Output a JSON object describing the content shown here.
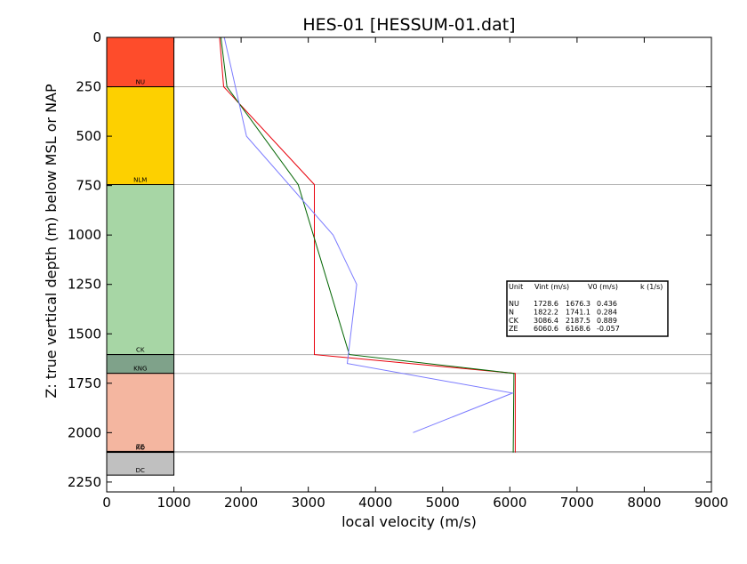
{
  "chart_data": {
    "type": "line",
    "title": "HES-01 [HESSUM-01.dat]",
    "xlabel": "local velocity (m/s)",
    "ylabel": "Z: true vertical depth (m) below MSL or NAP",
    "xlim": [
      0,
      9000
    ],
    "ylim": [
      2300,
      0
    ],
    "y_inverted": true,
    "x_ticks": [
      "0",
      "1000",
      "2000",
      "3000",
      "4000",
      "5000",
      "6000",
      "7000",
      "8000",
      "9000"
    ],
    "y_ticks": [
      "0",
      "250",
      "500",
      "750",
      "1000",
      "1250",
      "1500",
      "1750",
      "2000",
      "2250"
    ],
    "x_tick_values": [
      0,
      1000,
      2000,
      3000,
      4000,
      5000,
      6000,
      7000,
      8000,
      9000
    ],
    "y_tick_values": [
      0,
      250,
      500,
      750,
      1000,
      1250,
      1500,
      1750,
      2000,
      2250
    ],
    "boundary_lines": [
      250,
      745,
      1605,
      1700,
      2095,
      2100
    ],
    "units": [
      {
        "name": "NU",
        "top": 0,
        "bottom": 250,
        "color": "#fe4c2b"
      },
      {
        "name": "NLM",
        "top": 250,
        "bottom": 745,
        "color": "#fdd000"
      },
      {
        "name": "CK",
        "top": 745,
        "bottom": 1605,
        "color": "#a7d6a5"
      },
      {
        "name": "KNG",
        "top": 1605,
        "bottom": 1700,
        "color": "#7fa28a"
      },
      {
        "name": "ZE",
        "top": 1700,
        "bottom": 2095,
        "color": "#f4b6a0"
      },
      {
        "name": "RO",
        "top": 2095,
        "bottom": 2100,
        "color": "#d04030"
      },
      {
        "name": "DC",
        "top": 2100,
        "bottom": 2215,
        "color": "#c0c0c0"
      }
    ],
    "series": [
      {
        "color": "#e8000b",
        "points": [
          [
            1680,
            0
          ],
          [
            1740,
            250
          ],
          [
            3090,
            745
          ],
          [
            3090,
            1605
          ],
          [
            6080,
            1700
          ],
          [
            6080,
            2100
          ]
        ]
      },
      {
        "color": "#006400",
        "points": [
          [
            1700,
            0
          ],
          [
            1790,
            250
          ],
          [
            2850,
            745
          ],
          [
            3610,
            1605
          ],
          [
            6060,
            1700
          ],
          [
            6050,
            2100
          ]
        ]
      },
      {
        "color": "#7b7bff",
        "points": [
          [
            1750,
            0
          ],
          [
            2080,
            500
          ],
          [
            3370,
            1000
          ],
          [
            3720,
            1250
          ],
          [
            3580,
            1650
          ],
          [
            6040,
            1800
          ],
          [
            4560,
            2000
          ]
        ]
      }
    ],
    "legend": {
      "position": "center-right",
      "header": [
        "Unit",
        "Vint (m/s)",
        "V0 (m/s)",
        "k (1/s)"
      ],
      "rows": [
        [
          "NU",
          "1728.6",
          "1676.3",
          "0.436"
        ],
        [
          "N",
          "1822.2",
          "1741.1",
          "0.284"
        ],
        [
          "CK",
          "3086.4",
          "2187.5",
          "0.889"
        ],
        [
          "ZE",
          "6060.6",
          "6168.6",
          "-0.057"
        ]
      ]
    }
  }
}
